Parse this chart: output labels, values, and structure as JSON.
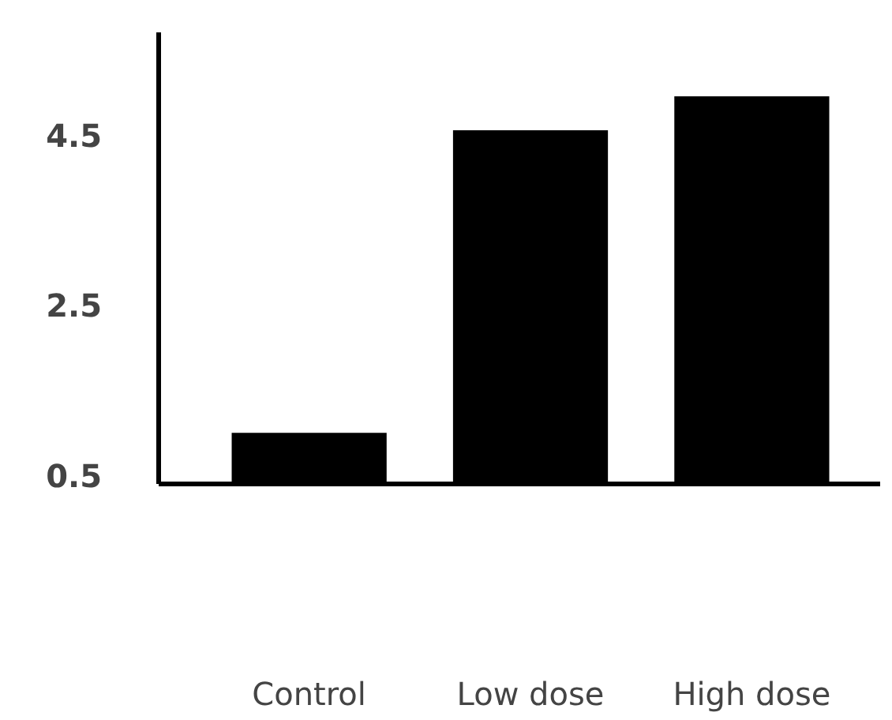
{
  "chart_data": {
    "type": "bar",
    "categories": [
      "Control",
      "Low dose",
      "High dose"
    ],
    "values": [
      1.0,
      4.55,
      4.95
    ],
    "color": "#000000",
    "ylim": [
      0.4,
      5.7
    ],
    "yticks": [
      0.5,
      2.5,
      4.5
    ],
    "grid": false
  }
}
